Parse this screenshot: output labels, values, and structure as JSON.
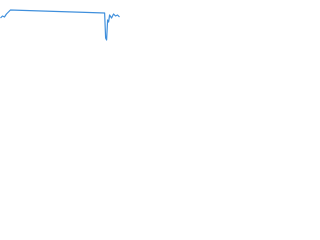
{
  "chart_data": {
    "type": "line",
    "x": [
      0,
      2,
      4,
      6,
      8,
      10,
      105,
      106,
      107,
      108,
      109,
      110,
      112,
      114,
      116,
      118,
      120
    ],
    "series": [
      {
        "color": "#3f8fdc",
        "values": [
          27,
          29,
          28,
          31,
          33,
          35,
          32,
          7,
          5,
          25,
          23,
          30,
          27,
          31,
          29,
          30,
          28
        ]
      }
    ],
    "xlim": [
      0,
      120
    ],
    "ylim": [
      0,
      45
    ]
  }
}
